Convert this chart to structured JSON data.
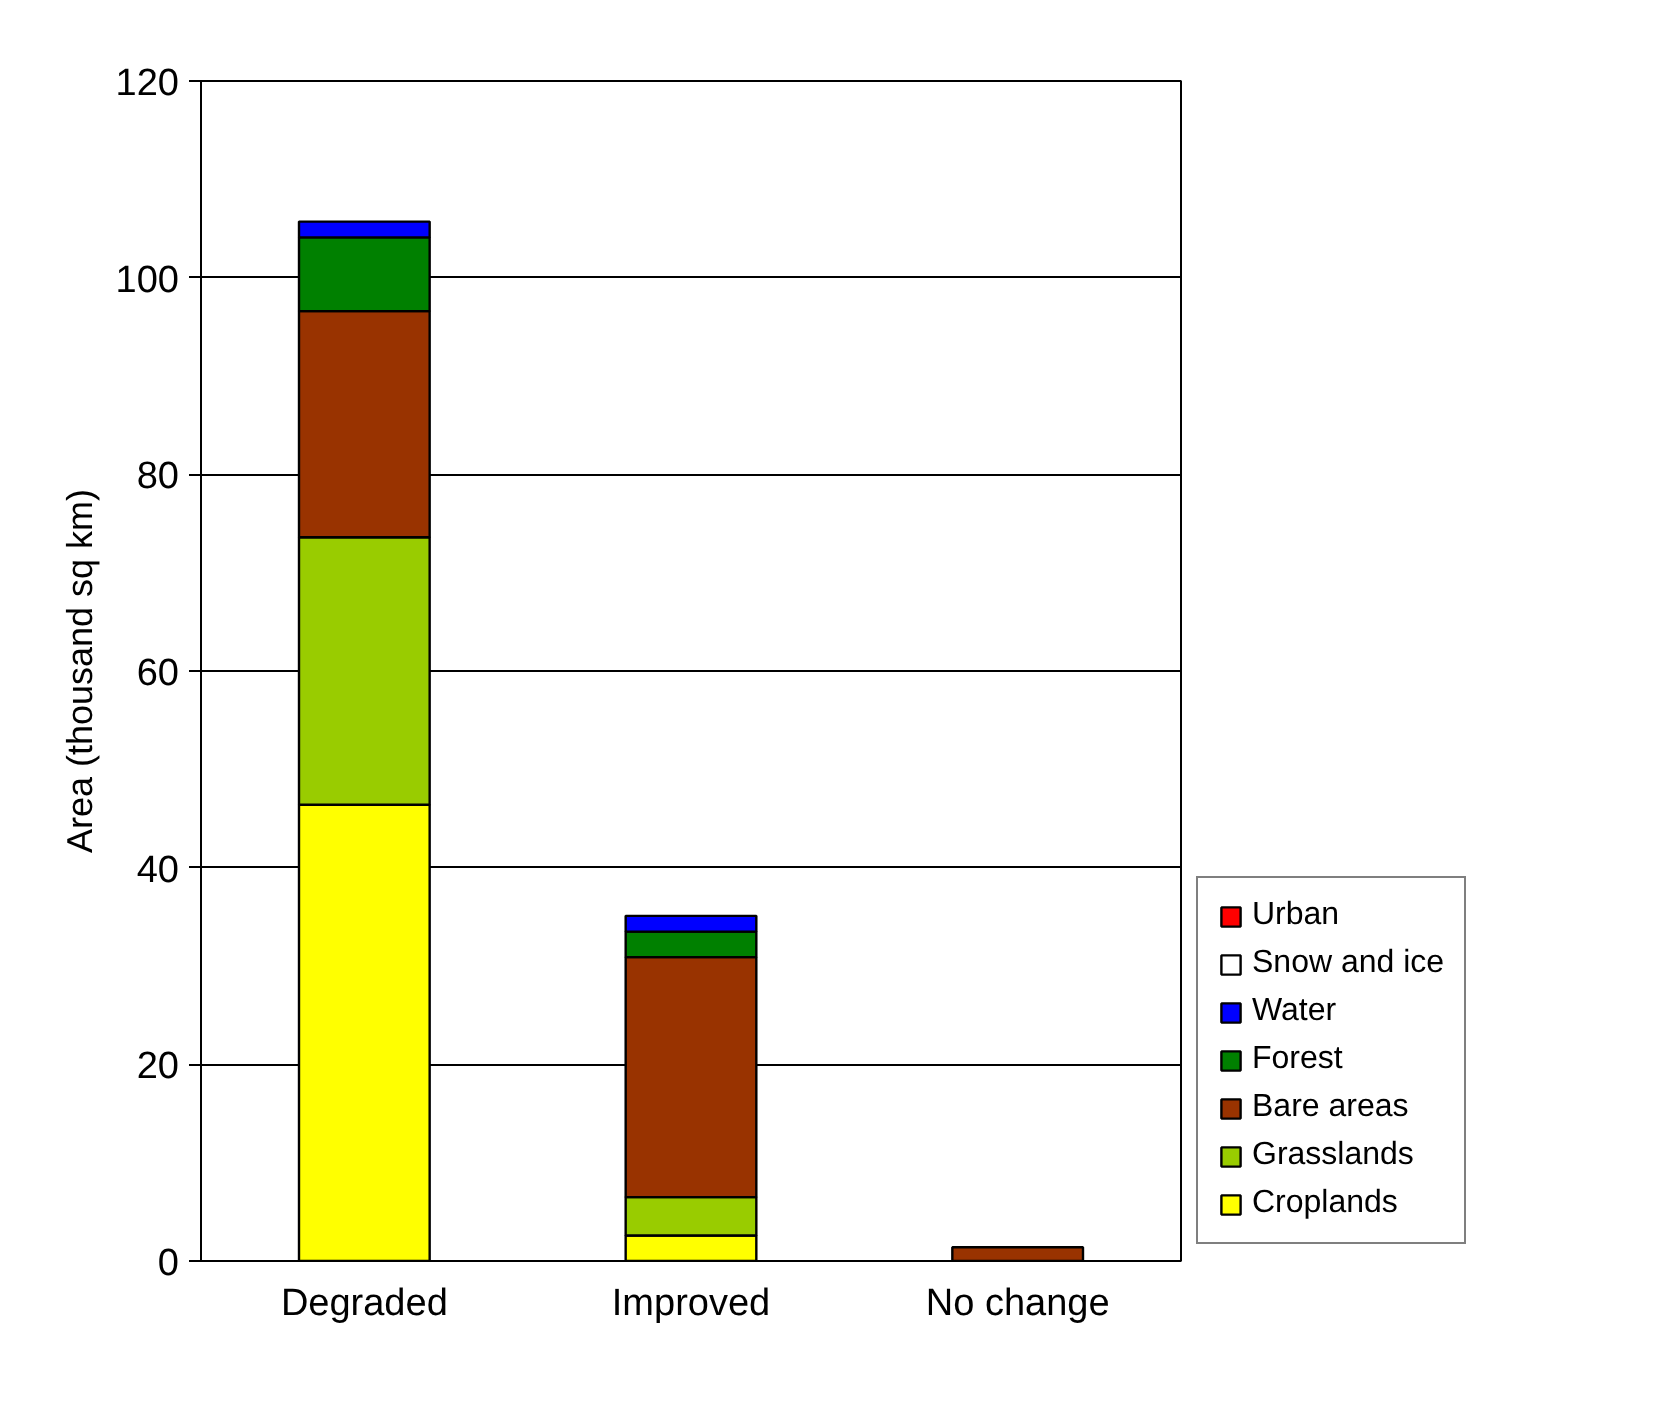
{
  "chart_data": {
    "type": "bar",
    "stacked": true,
    "ylabel": "Area (thousand sq km)",
    "categories": [
      "Degraded",
      "Improved",
      "No change"
    ],
    "series": [
      {
        "name": "Croplands",
        "color": "#ffff00",
        "values": [
          46.4,
          2.6,
          0
        ]
      },
      {
        "name": "Grasslands",
        "color": "#99cc00",
        "values": [
          27.2,
          3.9,
          0
        ]
      },
      {
        "name": "Bare areas",
        "color": "#993300",
        "values": [
          23.0,
          24.4,
          1.4
        ]
      },
      {
        "name": "Forest",
        "color": "#008000",
        "values": [
          7.5,
          2.6,
          0
        ]
      },
      {
        "name": "Water",
        "color": "#0000ff",
        "values": [
          1.6,
          1.6,
          0
        ]
      },
      {
        "name": "Snow and ice",
        "color": "#ffffff",
        "values": [
          0,
          0,
          0
        ]
      },
      {
        "name": "Urban",
        "color": "#ff0000",
        "values": [
          0,
          0,
          0
        ]
      }
    ],
    "ylim": [
      0,
      120
    ],
    "yticks": [
      0,
      20,
      40,
      60,
      80,
      100,
      120
    ],
    "grid": "y",
    "legend": "bottom right"
  }
}
